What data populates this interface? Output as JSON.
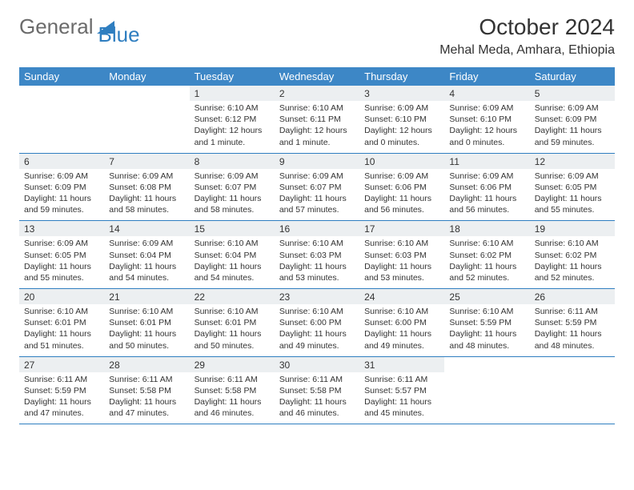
{
  "logo": {
    "text_general": "General",
    "text_blue": "Blue"
  },
  "title": {
    "month": "October 2024",
    "location": "Mehal Meda, Amhara, Ethiopia"
  },
  "colors": {
    "header_bg": "#3d87c6",
    "daynum_bg": "#eceff1",
    "rule": "#2f7ec0",
    "text": "#333333",
    "logo_gray": "#6b6b6b",
    "logo_blue": "#2f7ec0"
  },
  "layout": {
    "cols": 7,
    "weeks": 5,
    "cell_font_pt": 10.5,
    "header_font_pt": 13
  },
  "day_headers": [
    "Sunday",
    "Monday",
    "Tuesday",
    "Wednesday",
    "Thursday",
    "Friday",
    "Saturday"
  ],
  "weeks": [
    [
      null,
      null,
      {
        "n": "1",
        "sr": "Sunrise: 6:10 AM",
        "ss": "Sunset: 6:12 PM",
        "d1": "Daylight: 12 hours",
        "d2": "and 1 minute."
      },
      {
        "n": "2",
        "sr": "Sunrise: 6:10 AM",
        "ss": "Sunset: 6:11 PM",
        "d1": "Daylight: 12 hours",
        "d2": "and 1 minute."
      },
      {
        "n": "3",
        "sr": "Sunrise: 6:09 AM",
        "ss": "Sunset: 6:10 PM",
        "d1": "Daylight: 12 hours",
        "d2": "and 0 minutes."
      },
      {
        "n": "4",
        "sr": "Sunrise: 6:09 AM",
        "ss": "Sunset: 6:10 PM",
        "d1": "Daylight: 12 hours",
        "d2": "and 0 minutes."
      },
      {
        "n": "5",
        "sr": "Sunrise: 6:09 AM",
        "ss": "Sunset: 6:09 PM",
        "d1": "Daylight: 11 hours",
        "d2": "and 59 minutes."
      }
    ],
    [
      {
        "n": "6",
        "sr": "Sunrise: 6:09 AM",
        "ss": "Sunset: 6:09 PM",
        "d1": "Daylight: 11 hours",
        "d2": "and 59 minutes."
      },
      {
        "n": "7",
        "sr": "Sunrise: 6:09 AM",
        "ss": "Sunset: 6:08 PM",
        "d1": "Daylight: 11 hours",
        "d2": "and 58 minutes."
      },
      {
        "n": "8",
        "sr": "Sunrise: 6:09 AM",
        "ss": "Sunset: 6:07 PM",
        "d1": "Daylight: 11 hours",
        "d2": "and 58 minutes."
      },
      {
        "n": "9",
        "sr": "Sunrise: 6:09 AM",
        "ss": "Sunset: 6:07 PM",
        "d1": "Daylight: 11 hours",
        "d2": "and 57 minutes."
      },
      {
        "n": "10",
        "sr": "Sunrise: 6:09 AM",
        "ss": "Sunset: 6:06 PM",
        "d1": "Daylight: 11 hours",
        "d2": "and 56 minutes."
      },
      {
        "n": "11",
        "sr": "Sunrise: 6:09 AM",
        "ss": "Sunset: 6:06 PM",
        "d1": "Daylight: 11 hours",
        "d2": "and 56 minutes."
      },
      {
        "n": "12",
        "sr": "Sunrise: 6:09 AM",
        "ss": "Sunset: 6:05 PM",
        "d1": "Daylight: 11 hours",
        "d2": "and 55 minutes."
      }
    ],
    [
      {
        "n": "13",
        "sr": "Sunrise: 6:09 AM",
        "ss": "Sunset: 6:05 PM",
        "d1": "Daylight: 11 hours",
        "d2": "and 55 minutes."
      },
      {
        "n": "14",
        "sr": "Sunrise: 6:09 AM",
        "ss": "Sunset: 6:04 PM",
        "d1": "Daylight: 11 hours",
        "d2": "and 54 minutes."
      },
      {
        "n": "15",
        "sr": "Sunrise: 6:10 AM",
        "ss": "Sunset: 6:04 PM",
        "d1": "Daylight: 11 hours",
        "d2": "and 54 minutes."
      },
      {
        "n": "16",
        "sr": "Sunrise: 6:10 AM",
        "ss": "Sunset: 6:03 PM",
        "d1": "Daylight: 11 hours",
        "d2": "and 53 minutes."
      },
      {
        "n": "17",
        "sr": "Sunrise: 6:10 AM",
        "ss": "Sunset: 6:03 PM",
        "d1": "Daylight: 11 hours",
        "d2": "and 53 minutes."
      },
      {
        "n": "18",
        "sr": "Sunrise: 6:10 AM",
        "ss": "Sunset: 6:02 PM",
        "d1": "Daylight: 11 hours",
        "d2": "and 52 minutes."
      },
      {
        "n": "19",
        "sr": "Sunrise: 6:10 AM",
        "ss": "Sunset: 6:02 PM",
        "d1": "Daylight: 11 hours",
        "d2": "and 52 minutes."
      }
    ],
    [
      {
        "n": "20",
        "sr": "Sunrise: 6:10 AM",
        "ss": "Sunset: 6:01 PM",
        "d1": "Daylight: 11 hours",
        "d2": "and 51 minutes."
      },
      {
        "n": "21",
        "sr": "Sunrise: 6:10 AM",
        "ss": "Sunset: 6:01 PM",
        "d1": "Daylight: 11 hours",
        "d2": "and 50 minutes."
      },
      {
        "n": "22",
        "sr": "Sunrise: 6:10 AM",
        "ss": "Sunset: 6:01 PM",
        "d1": "Daylight: 11 hours",
        "d2": "and 50 minutes."
      },
      {
        "n": "23",
        "sr": "Sunrise: 6:10 AM",
        "ss": "Sunset: 6:00 PM",
        "d1": "Daylight: 11 hours",
        "d2": "and 49 minutes."
      },
      {
        "n": "24",
        "sr": "Sunrise: 6:10 AM",
        "ss": "Sunset: 6:00 PM",
        "d1": "Daylight: 11 hours",
        "d2": "and 49 minutes."
      },
      {
        "n": "25",
        "sr": "Sunrise: 6:10 AM",
        "ss": "Sunset: 5:59 PM",
        "d1": "Daylight: 11 hours",
        "d2": "and 48 minutes."
      },
      {
        "n": "26",
        "sr": "Sunrise: 6:11 AM",
        "ss": "Sunset: 5:59 PM",
        "d1": "Daylight: 11 hours",
        "d2": "and 48 minutes."
      }
    ],
    [
      {
        "n": "27",
        "sr": "Sunrise: 6:11 AM",
        "ss": "Sunset: 5:59 PM",
        "d1": "Daylight: 11 hours",
        "d2": "and 47 minutes."
      },
      {
        "n": "28",
        "sr": "Sunrise: 6:11 AM",
        "ss": "Sunset: 5:58 PM",
        "d1": "Daylight: 11 hours",
        "d2": "and 47 minutes."
      },
      {
        "n": "29",
        "sr": "Sunrise: 6:11 AM",
        "ss": "Sunset: 5:58 PM",
        "d1": "Daylight: 11 hours",
        "d2": "and 46 minutes."
      },
      {
        "n": "30",
        "sr": "Sunrise: 6:11 AM",
        "ss": "Sunset: 5:58 PM",
        "d1": "Daylight: 11 hours",
        "d2": "and 46 minutes."
      },
      {
        "n": "31",
        "sr": "Sunrise: 6:11 AM",
        "ss": "Sunset: 5:57 PM",
        "d1": "Daylight: 11 hours",
        "d2": "and 45 minutes."
      },
      null,
      null
    ]
  ]
}
